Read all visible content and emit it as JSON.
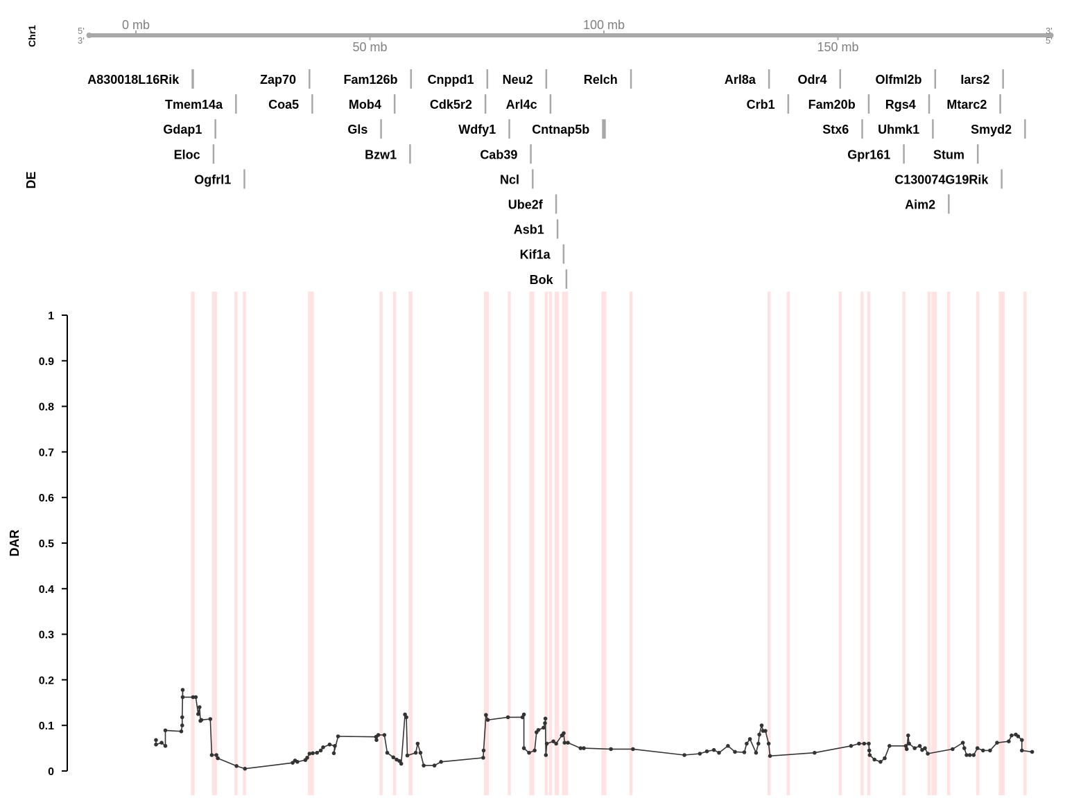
{
  "chromosome": "Chr1",
  "ideogram": {
    "strand_left_top": "5'",
    "strand_left_bottom": "3'",
    "strand_right_top": "3'",
    "strand_right_bottom": "5'",
    "ticks": [
      {
        "mb": 0,
        "label": "0 mb",
        "side": "top"
      },
      {
        "mb": 50,
        "label": "50 mb",
        "side": "bottom"
      },
      {
        "mb": 100,
        "label": "100 mb",
        "side": "top"
      },
      {
        "mb": 150,
        "label": "150 mb",
        "side": "bottom"
      }
    ],
    "range_mb": [
      -10,
      195.5
    ]
  },
  "de_track": {
    "label": "DE",
    "genes": [
      {
        "name": "A830018L16Rik",
        "start_mb": 11.9,
        "end_mb": 12.4,
        "row": 0
      },
      {
        "name": "Zap70",
        "start_mb": 36.9,
        "end_mb": 37.1,
        "row": 0
      },
      {
        "name": "Fam126b",
        "start_mb": 58.6,
        "end_mb": 58.8,
        "row": 0
      },
      {
        "name": "Cnppd1",
        "start_mb": 74.9,
        "end_mb": 75.1,
        "row": 0
      },
      {
        "name": "Neu2",
        "start_mb": 87.5,
        "end_mb": 87.7,
        "row": 0
      },
      {
        "name": "Relch",
        "start_mb": 105.6,
        "end_mb": 105.8,
        "row": 0
      },
      {
        "name": "Arl8a",
        "start_mb": 135.1,
        "end_mb": 135.3,
        "row": 0
      },
      {
        "name": "Odr4",
        "start_mb": 150.3,
        "end_mb": 150.5,
        "row": 0
      },
      {
        "name": "Olfml2b",
        "start_mb": 170.6,
        "end_mb": 170.8,
        "row": 0
      },
      {
        "name": "Iars2",
        "start_mb": 185.1,
        "end_mb": 185.3,
        "row": 0
      },
      {
        "name": "Tmem14a",
        "start_mb": 21.2,
        "end_mb": 21.4,
        "row": 1
      },
      {
        "name": "Coa5",
        "start_mb": 37.5,
        "end_mb": 37.7,
        "row": 1
      },
      {
        "name": "Mob4",
        "start_mb": 55.1,
        "end_mb": 55.3,
        "row": 1
      },
      {
        "name": "Cdk5r2",
        "start_mb": 74.5,
        "end_mb": 74.7,
        "row": 1
      },
      {
        "name": "Arl4c",
        "start_mb": 88.4,
        "end_mb": 88.6,
        "row": 1
      },
      {
        "name": "Crb1",
        "start_mb": 139.2,
        "end_mb": 139.4,
        "row": 1
      },
      {
        "name": "Fam20b",
        "start_mb": 156.4,
        "end_mb": 156.6,
        "row": 1
      },
      {
        "name": "Rgs4",
        "start_mb": 169.3,
        "end_mb": 169.5,
        "row": 1
      },
      {
        "name": "Mtarc2",
        "start_mb": 184.5,
        "end_mb": 184.7,
        "row": 1
      },
      {
        "name": "Gdap1",
        "start_mb": 16.8,
        "end_mb": 17.0,
        "row": 2
      },
      {
        "name": "Gls",
        "start_mb": 52.2,
        "end_mb": 52.4,
        "row": 2
      },
      {
        "name": "Wdfy1",
        "start_mb": 79.6,
        "end_mb": 79.8,
        "row": 2
      },
      {
        "name": "Cntnap5b",
        "start_mb": 99.6,
        "end_mb": 100.4,
        "row": 2
      },
      {
        "name": "Stx6",
        "start_mb": 155.0,
        "end_mb": 155.2,
        "row": 2
      },
      {
        "name": "Uhmk1",
        "start_mb": 170.1,
        "end_mb": 170.3,
        "row": 2
      },
      {
        "name": "Smyd2",
        "start_mb": 189.8,
        "end_mb": 190.0,
        "row": 2
      },
      {
        "name": "Eloc",
        "start_mb": 16.4,
        "end_mb": 16.6,
        "row": 3
      },
      {
        "name": "Bzw1",
        "start_mb": 58.4,
        "end_mb": 58.6,
        "row": 3
      },
      {
        "name": "Cab39",
        "start_mb": 84.2,
        "end_mb": 84.4,
        "row": 3
      },
      {
        "name": "Gpr161",
        "start_mb": 163.9,
        "end_mb": 164.1,
        "row": 3
      },
      {
        "name": "Stum",
        "start_mb": 179.7,
        "end_mb": 179.9,
        "row": 3
      },
      {
        "name": "Ogfrl1",
        "start_mb": 23.0,
        "end_mb": 23.2,
        "row": 4
      },
      {
        "name": "Ncl",
        "start_mb": 84.6,
        "end_mb": 84.8,
        "row": 4
      },
      {
        "name": "C130074G19Rik",
        "start_mb": 184.8,
        "end_mb": 185.0,
        "row": 4
      },
      {
        "name": "Ube2f",
        "start_mb": 89.6,
        "end_mb": 89.8,
        "row": 5
      },
      {
        "name": "Aim2",
        "start_mb": 173.5,
        "end_mb": 173.7,
        "row": 5
      },
      {
        "name": "Asb1",
        "start_mb": 89.9,
        "end_mb": 90.1,
        "row": 6
      },
      {
        "name": "Kif1a",
        "start_mb": 91.2,
        "end_mb": 91.4,
        "row": 7
      },
      {
        "name": "Bok",
        "start_mb": 91.8,
        "end_mb": 92.0,
        "row": 8
      }
    ]
  },
  "highlight_color": "#ffe0e0",
  "gene_bar_color": "#a8a8a8",
  "line_color": "#333333",
  "chart_data": {
    "type": "line",
    "ylabel": "DAR",
    "ylim": [
      0,
      1
    ],
    "yticks": [
      0,
      0.1,
      0.2,
      0.3,
      0.4,
      0.5,
      0.6,
      0.7,
      0.8,
      0.9,
      1
    ],
    "x_unit": "mb",
    "points": [
      [
        4.3,
        0.068
      ],
      [
        4.3,
        0.058
      ],
      [
        5.5,
        0.062
      ],
      [
        6.3,
        0.055
      ],
      [
        6.3,
        0.089
      ],
      [
        9.7,
        0.087
      ],
      [
        9.9,
        0.1
      ],
      [
        9.9,
        0.118
      ],
      [
        10.0,
        0.178
      ],
      [
        10.0,
        0.162
      ],
      [
        12.2,
        0.162
      ],
      [
        12.8,
        0.162
      ],
      [
        13.3,
        0.125
      ],
      [
        13.6,
        0.14
      ],
      [
        13.8,
        0.11
      ],
      [
        14.0,
        0.112
      ],
      [
        15.9,
        0.114
      ],
      [
        16.2,
        0.035
      ],
      [
        17.2,
        0.035
      ],
      [
        17.5,
        0.028
      ],
      [
        21.5,
        0.011
      ],
      [
        23.3,
        0.005
      ],
      [
        33.5,
        0.018
      ],
      [
        34.0,
        0.023
      ],
      [
        34.5,
        0.02
      ],
      [
        36.2,
        0.024
      ],
      [
        36.6,
        0.029
      ],
      [
        37.1,
        0.038
      ],
      [
        37.8,
        0.039
      ],
      [
        38.7,
        0.04
      ],
      [
        39.5,
        0.045
      ],
      [
        40.0,
        0.052
      ],
      [
        41.4,
        0.058
      ],
      [
        42.5,
        0.055
      ],
      [
        42.3,
        0.039
      ],
      [
        43.2,
        0.076
      ],
      [
        51.3,
        0.075
      ],
      [
        51.4,
        0.068
      ],
      [
        51.8,
        0.079
      ],
      [
        53.1,
        0.079
      ],
      [
        53.7,
        0.04
      ],
      [
        55.0,
        0.03
      ],
      [
        55.7,
        0.025
      ],
      [
        56.3,
        0.022
      ],
      [
        56.7,
        0.016
      ],
      [
        57.5,
        0.124
      ],
      [
        57.8,
        0.118
      ],
      [
        58.0,
        0.034
      ],
      [
        59.8,
        0.04
      ],
      [
        60.2,
        0.06
      ],
      [
        60.8,
        0.04
      ],
      [
        61.5,
        0.012
      ],
      [
        63.8,
        0.012
      ],
      [
        65.2,
        0.02
      ],
      [
        74.2,
        0.029
      ],
      [
        74.3,
        0.045
      ],
      [
        74.8,
        0.123
      ],
      [
        75.2,
        0.112
      ],
      [
        79.5,
        0.118
      ],
      [
        82.6,
        0.118
      ],
      [
        82.9,
        0.124
      ],
      [
        82.9,
        0.05
      ],
      [
        84.0,
        0.04
      ],
      [
        85.2,
        0.045
      ],
      [
        85.6,
        0.085
      ],
      [
        86.0,
        0.09
      ],
      [
        87.1,
        0.095
      ],
      [
        87.4,
        0.105
      ],
      [
        87.5,
        0.115
      ],
      [
        87.6,
        0.035
      ],
      [
        87.8,
        0.06
      ],
      [
        89.2,
        0.065
      ],
      [
        89.8,
        0.06
      ],
      [
        91.0,
        0.078
      ],
      [
        91.4,
        0.083
      ],
      [
        91.6,
        0.062
      ],
      [
        92.3,
        0.062
      ],
      [
        95.0,
        0.05
      ],
      [
        95.7,
        0.05
      ],
      [
        101.5,
        0.048
      ],
      [
        106.2,
        0.048
      ],
      [
        117.2,
        0.035
      ],
      [
        120.5,
        0.038
      ],
      [
        122.0,
        0.043
      ],
      [
        123.5,
        0.046
      ],
      [
        124.6,
        0.04
      ],
      [
        126.5,
        0.055
      ],
      [
        128.0,
        0.042
      ],
      [
        130.0,
        0.041
      ],
      [
        130.5,
        0.06
      ],
      [
        131.2,
        0.07
      ],
      [
        132.5,
        0.04
      ],
      [
        133.0,
        0.06
      ],
      [
        133.2,
        0.08
      ],
      [
        133.7,
        0.1
      ],
      [
        134.0,
        0.088
      ],
      [
        134.5,
        0.088
      ],
      [
        135.2,
        0.06
      ],
      [
        135.5,
        0.033
      ],
      [
        145.0,
        0.04
      ],
      [
        152.8,
        0.055
      ],
      [
        154.5,
        0.06
      ],
      [
        155.6,
        0.06
      ],
      [
        156.6,
        0.06
      ],
      [
        156.7,
        0.045
      ],
      [
        156.8,
        0.035
      ],
      [
        157.8,
        0.025
      ],
      [
        159.1,
        0.02
      ],
      [
        160.0,
        0.028
      ],
      [
        161.0,
        0.055
      ],
      [
        164.5,
        0.055
      ],
      [
        164.7,
        0.048
      ],
      [
        165.0,
        0.078
      ],
      [
        165.2,
        0.06
      ],
      [
        166.4,
        0.05
      ],
      [
        167.5,
        0.055
      ],
      [
        168.0,
        0.046
      ],
      [
        168.6,
        0.05
      ],
      [
        169.2,
        0.038
      ],
      [
        174.5,
        0.048
      ],
      [
        176.7,
        0.062
      ],
      [
        177.0,
        0.05
      ],
      [
        177.5,
        0.035
      ],
      [
        178.2,
        0.035
      ],
      [
        179.0,
        0.035
      ],
      [
        179.8,
        0.05
      ],
      [
        181.0,
        0.045
      ],
      [
        182.5,
        0.045
      ],
      [
        184.0,
        0.062
      ],
      [
        186.5,
        0.065
      ],
      [
        187.1,
        0.078
      ],
      [
        188.0,
        0.08
      ],
      [
        188.5,
        0.076
      ],
      [
        189.3,
        0.068
      ],
      [
        189.3,
        0.045
      ],
      [
        191.5,
        0.042
      ]
    ]
  }
}
